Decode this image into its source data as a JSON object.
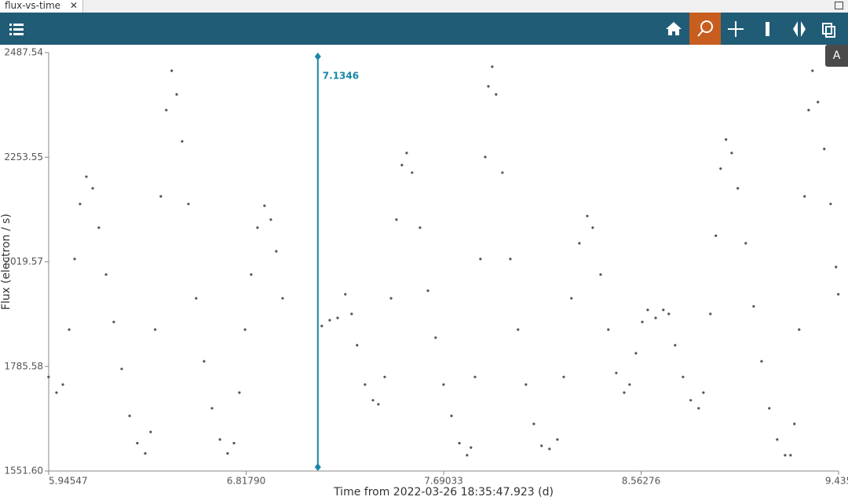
{
  "tab": {
    "title": "flux-vs-time"
  },
  "side_button": "A",
  "chart_data": {
    "type": "scatter",
    "xlabel": "Time from 2022-03-26 18:35:47.923 (d)",
    "ylabel": "Flux (electron / s)",
    "color": "#555555",
    "xlim": [
      5.94547,
      9.43519
    ],
    "ylim": [
      1551.6,
      2487.54
    ],
    "xticks": [
      5.94547,
      {
        "value": 6.8179,
        "label": "6.81790"
      },
      7.69033,
      8.56276,
      {
        "value": 9.43519,
        "label": "9.435"
      }
    ],
    "yticks": [
      {
        "value": 1551.6,
        "label": "1551.60"
      },
      1785.58,
      2019.57,
      2253.55,
      2487.54
    ],
    "marker": {
      "x": 7.1346,
      "label": "7.1346",
      "color": "#1a87a8"
    },
    "x": [
      5.945,
      5.98,
      6.008,
      6.036,
      6.06,
      6.084,
      6.112,
      6.14,
      6.167,
      6.199,
      6.233,
      6.268,
      6.303,
      6.337,
      6.372,
      6.396,
      6.416,
      6.441,
      6.465,
      6.489,
      6.511,
      6.535,
      6.563,
      6.597,
      6.632,
      6.667,
      6.702,
      6.736,
      6.764,
      6.788,
      6.813,
      6.84,
      6.868,
      6.899,
      6.927,
      6.951,
      6.979,
      7.152,
      7.187,
      7.222,
      7.256,
      7.284,
      7.308,
      7.343,
      7.378,
      7.402,
      7.43,
      7.458,
      7.482,
      7.506,
      7.527,
      7.551,
      7.586,
      7.621,
      7.655,
      7.69,
      7.725,
      7.76,
      7.794,
      7.811,
      7.829,
      7.853,
      7.874,
      7.888,
      7.905,
      7.922,
      7.95,
      7.985,
      8.019,
      8.054,
      8.089,
      8.123,
      8.158,
      8.193,
      8.221,
      8.255,
      8.29,
      8.325,
      8.349,
      8.384,
      8.418,
      8.453,
      8.488,
      8.512,
      8.54,
      8.568,
      8.592,
      8.627,
      8.661,
      8.685,
      8.713,
      8.748,
      8.782,
      8.817,
      8.838,
      8.869,
      8.893,
      8.914,
      8.938,
      8.963,
      8.99,
      9.025,
      9.06,
      9.095,
      9.129,
      9.164,
      9.199,
      9.223,
      9.24,
      9.261,
      9.285,
      9.303,
      9.32,
      9.344,
      9.372,
      9.4,
      9.424,
      9.434
    ],
    "values": [
      1762,
      1727,
      1745,
      1868,
      2026,
      2149,
      2210,
      2184,
      2096,
      1991,
      1885,
      1780,
      1675,
      1614,
      1591,
      1639,
      1868,
      2166,
      2359,
      2447,
      2394,
      2289,
      2149,
      1938,
      1797,
      1692,
      1622,
      1591,
      1614,
      1727,
      1868,
      1991,
      2096,
      2145,
      2114,
      2043,
      1938,
      1876,
      1889,
      1894,
      1947,
      1903,
      1833,
      1745,
      1710,
      1701,
      1762,
      1938,
      2114,
      2236,
      2263,
      2219,
      2096,
      1955,
      1850,
      1745,
      1675,
      1614,
      1587,
      1604,
      1762,
      2026,
      2254,
      2412,
      2456,
      2394,
      2219,
      2026,
      1868,
      1745,
      1657,
      1608,
      1601,
      1622,
      1762,
      1938,
      2061,
      2122,
      2096,
      1991,
      1868,
      1771,
      1727,
      1745,
      1815,
      1885,
      1912,
      1894,
      1912,
      1903,
      1833,
      1762,
      1710,
      1692,
      1727,
      1903,
      2078,
      2228,
      2293,
      2263,
      2184,
      2061,
      1920,
      1797,
      1692,
      1622,
      1587,
      1587,
      1657,
      1868,
      2166,
      2359,
      2447,
      2377,
      2272,
      2149,
      2008,
      1947
    ]
  }
}
